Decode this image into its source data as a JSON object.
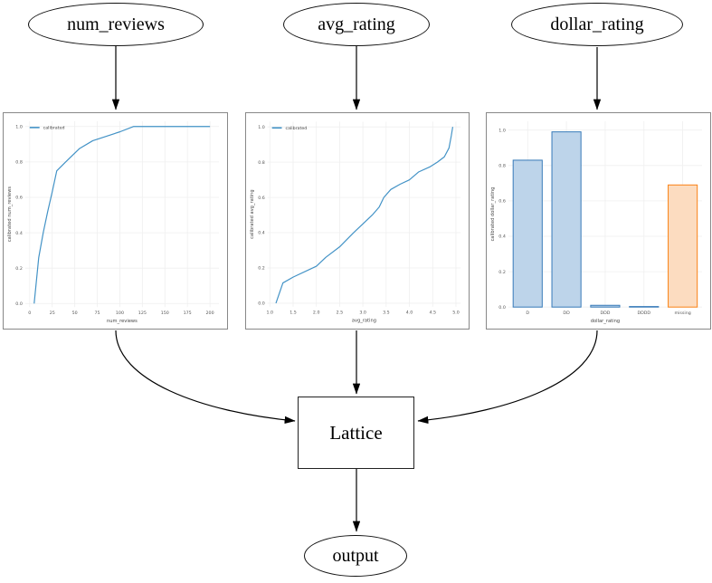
{
  "nodes": {
    "num_reviews": {
      "label": "num_reviews"
    },
    "avg_rating": {
      "label": "avg_rating"
    },
    "dollar_rating": {
      "label": "dollar_rating"
    },
    "lattice": {
      "label": "Lattice"
    },
    "output": {
      "label": "output"
    }
  },
  "edges": [
    {
      "from": "num_reviews",
      "to": "calibrator_num_reviews"
    },
    {
      "from": "avg_rating",
      "to": "calibrator_avg_rating"
    },
    {
      "from": "dollar_rating",
      "to": "calibrator_dollar_rating"
    },
    {
      "from": "calibrator_num_reviews",
      "to": "lattice"
    },
    {
      "from": "calibrator_avg_rating",
      "to": "lattice"
    },
    {
      "from": "calibrator_dollar_rating",
      "to": "lattice"
    },
    {
      "from": "lattice",
      "to": "output"
    }
  ],
  "colors": {
    "line": "#4292c6",
    "bar_blue_fill": "#bdd4ea",
    "bar_blue_edge": "#3579b8",
    "bar_orange_fill": "#fcdcc0",
    "bar_orange_edge": "#fa8114",
    "grid": "#efefef",
    "tick_text": "#555555",
    "axis_text": "#444444",
    "panel_border": "#888888",
    "edge_stroke": "#000000"
  },
  "chart_data": [
    {
      "type": "line",
      "title": "",
      "xlabel": "num_reviews",
      "ylabel": "calibrated num_reviews",
      "legend": [
        {
          "label": "calibrated"
        }
      ],
      "legend_position": "upper left",
      "grid": true,
      "xlim": [
        -5,
        210
      ],
      "ylim": [
        -0.02,
        1.03
      ],
      "x_tick_values": [
        0,
        25,
        50,
        75,
        100,
        125,
        150,
        175,
        200
      ],
      "x_tick_labels": [
        "0",
        "25",
        "50",
        "75",
        "100",
        "125",
        "150",
        "175",
        "200"
      ],
      "y_tick_values": [
        0.0,
        0.2,
        0.4,
        0.6,
        0.8,
        1.0
      ],
      "y_tick_labels": [
        "0.0",
        "0.2",
        "0.4",
        "0.6",
        "0.8",
        "1.0"
      ],
      "series": [
        {
          "name": "calibrated",
          "x": [
            5,
            10,
            15,
            20,
            25,
            30,
            40,
            55,
            70,
            85,
            100,
            115,
            140,
            200
          ],
          "y": [
            0.0,
            0.26,
            0.4,
            0.52,
            0.63,
            0.75,
            0.8,
            0.875,
            0.92,
            0.945,
            0.97,
            1.0,
            1.0,
            1.0
          ]
        }
      ]
    },
    {
      "type": "line",
      "title": "",
      "xlabel": "avg_rating",
      "ylabel": "calibrated avg_rating",
      "legend": [
        {
          "label": "calibrated"
        }
      ],
      "legend_position": "upper left",
      "grid": true,
      "xlim": [
        0.95,
        5.1
      ],
      "ylim": [
        -0.02,
        1.03
      ],
      "x_tick_values": [
        1.0,
        1.5,
        2.0,
        2.5,
        3.0,
        3.5,
        4.0,
        4.5,
        5.0
      ],
      "x_tick_labels": [
        "1.0",
        "1.5",
        "2.0",
        "2.5",
        "3.0",
        "3.5",
        "4.0",
        "4.5",
        "5.0"
      ],
      "y_tick_values": [
        0.0,
        0.2,
        0.4,
        0.6,
        0.8,
        1.0
      ],
      "y_tick_labels": [
        "0.0",
        "0.2",
        "0.4",
        "0.6",
        "0.8",
        "1.0"
      ],
      "series": [
        {
          "name": "calibrated",
          "x": [
            1.13,
            1.28,
            1.5,
            2.0,
            2.2,
            2.5,
            2.8,
            3.0,
            3.2,
            3.35,
            3.45,
            3.6,
            3.8,
            4.0,
            4.2,
            4.45,
            4.6,
            4.75,
            4.85,
            4.9,
            4.93
          ],
          "y": [
            0.0,
            0.115,
            0.148,
            0.21,
            0.26,
            0.32,
            0.4,
            0.45,
            0.5,
            0.545,
            0.6,
            0.645,
            0.675,
            0.7,
            0.745,
            0.775,
            0.8,
            0.83,
            0.88,
            0.95,
            1.0
          ]
        }
      ]
    },
    {
      "type": "bar",
      "title": "",
      "xlabel": "dollar_rating",
      "ylabel": "calibrated dollar_rating",
      "grid": true,
      "categories": [
        "D",
        "DD",
        "DDD",
        "DDDD",
        "missing"
      ],
      "values": [
        0.83,
        0.99,
        0.01,
        0.003,
        0.69
      ],
      "bar_color_keys": [
        "blue",
        "blue",
        "blue",
        "blue",
        "orange"
      ],
      "xlim": [
        -0.5,
        4.5
      ],
      "ylim": [
        0,
        1.05
      ],
      "y_tick_values": [
        0.0,
        0.2,
        0.4,
        0.6,
        0.8,
        1.0
      ],
      "y_tick_labels": [
        "0.0",
        "0.2",
        "0.4",
        "0.6",
        "0.8",
        "1.0"
      ]
    }
  ]
}
